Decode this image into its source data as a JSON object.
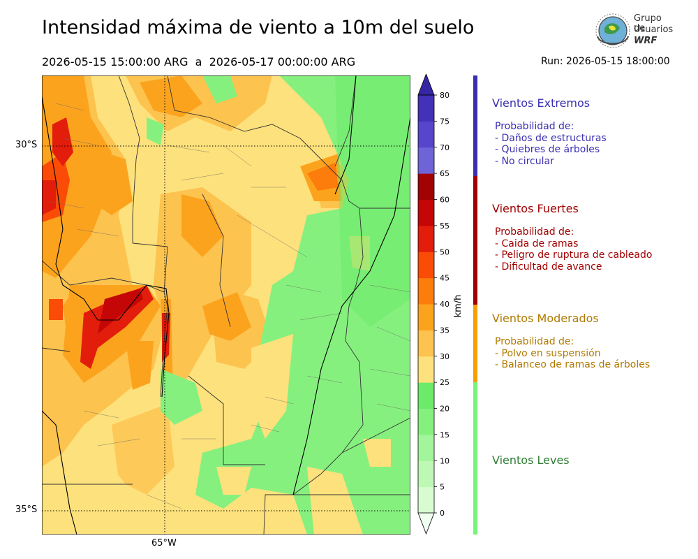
{
  "header": {
    "title": "Intensidad máxima de viento a 10m del suelo",
    "dates": "2026-05-15 15:00:00 ARG  a  2026-05-17 00:00:00 ARG",
    "run": "Run: 2026-05-15 18:00:00"
  },
  "logo": {
    "line1": "Grupo de",
    "line2": "Usuarios",
    "line3": "WRF"
  },
  "map": {
    "lat_labels": [
      "30°S",
      "35°S"
    ],
    "lon_labels": [
      "65°W"
    ]
  },
  "colorbar": {
    "unit": "km/h",
    "ticks": [
      "0",
      "5",
      "10",
      "15",
      "20",
      "25",
      "30",
      "35",
      "40",
      "45",
      "50",
      "55",
      "60",
      "65",
      "70",
      "75",
      "80"
    ],
    "colors": [
      "#f0fff0",
      "#d7fcd0",
      "#bdf8b4",
      "#a3f59b",
      "#86f07f",
      "#6ceb6a",
      "#fde17c",
      "#fdc34f",
      "#fca31e",
      "#fc7c0c",
      "#fa4c06",
      "#e21d0b",
      "#c40606",
      "#a10303",
      "#6f63d8",
      "#5746cc",
      "#4331b8",
      "#3626a5"
    ]
  },
  "legend": {
    "colors": {
      "extremos": "#3a2fb0",
      "fuertes": "#a00000",
      "moderados": "#f5a000",
      "leves": "#77f577"
    },
    "categories": [
      {
        "title": "Vientos Extremos",
        "color": "#3a2fb0",
        "lines": [
          "Probabilidad de:",
          "- Daños de estructuras",
          "- Quiebres de árboles",
          "- No circular"
        ]
      },
      {
        "title": "Vientos Fuertes",
        "color": "#a00000",
        "lines": [
          "Probabilidad de:",
          "- Caida de ramas",
          "- Peligro de ruptura de cableado",
          "- Dificultad de avance"
        ]
      },
      {
        "title": "Vientos Moderados",
        "color": "#b07a00",
        "lines": [
          "Probabilidad de:",
          "- Polvo en suspensión",
          "- Balanceo de ramas de árboles"
        ]
      },
      {
        "title": "Vientos Leves",
        "color": "#2e7d32",
        "lines": []
      }
    ]
  }
}
